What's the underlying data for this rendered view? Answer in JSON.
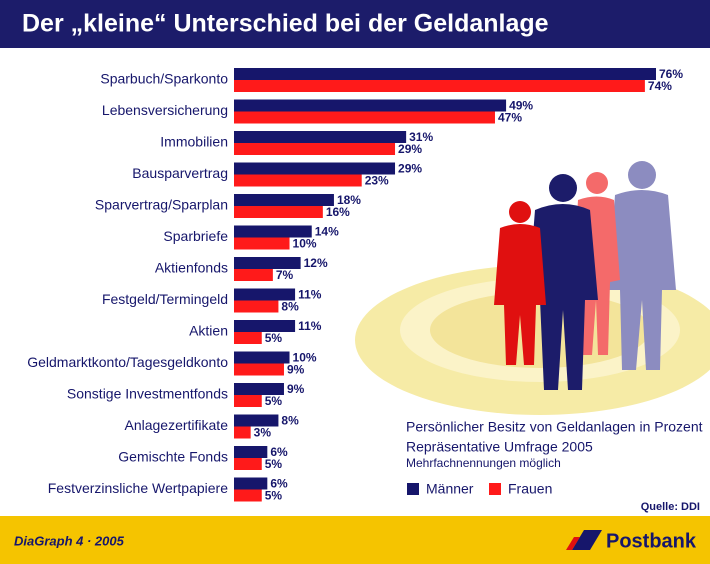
{
  "chart_data": {
    "type": "hbar",
    "title": "Der „kleine“ Unterschied bei der Geldanlage",
    "categories": [
      "Sparbuch/Sparkonto",
      "Lebensversicherung",
      "Immobilien",
      "Bausparvertrag",
      "Sparvertrag/Sparplan",
      "Sparbriefe",
      "Aktienfonds",
      "Festgeld/Termingeld",
      "Aktien",
      "Geldmarktkonto/Tagesgeldkonto",
      "Sonstige Investmentfonds",
      "Anlagezertifikate",
      "Gemischte Fonds",
      "Festverzinsliche Wertpapiere"
    ],
    "series": [
      {
        "name": "Männer",
        "color": "#16166b",
        "values": [
          76,
          49,
          31,
          29,
          18,
          14,
          12,
          11,
          11,
          10,
          9,
          8,
          6,
          6
        ],
        "value_labels": [
          "76%",
          "49%",
          "31%",
          "29%",
          "18%",
          "14%",
          "12%",
          "11%",
          "11%",
          "10%",
          "9%",
          "8%",
          "6%",
          "6%"
        ]
      },
      {
        "name": "Frauen",
        "color": "#ff1a1a",
        "values": [
          74,
          47,
          29,
          23,
          16,
          10,
          7,
          8,
          5,
          9,
          5,
          3,
          5,
          5
        ],
        "value_labels": [
          "74%",
          "47%",
          "29%",
          "23%",
          "16%",
          "10%",
          "7%",
          "8%",
          "5%",
          "9%",
          "5%",
          "3%",
          "5%",
          "5%"
        ]
      }
    ],
    "annotations": [
      "Persönlicher Besitz von Geldanlagen in Prozent",
      "Repräsentative Umfrage 2005",
      "Mehrfachnennungen möglich"
    ],
    "source": "Quelle: DDI"
  },
  "footer": {
    "left": "DiaGraph 4 · 2005",
    "brand": "Postbank"
  }
}
